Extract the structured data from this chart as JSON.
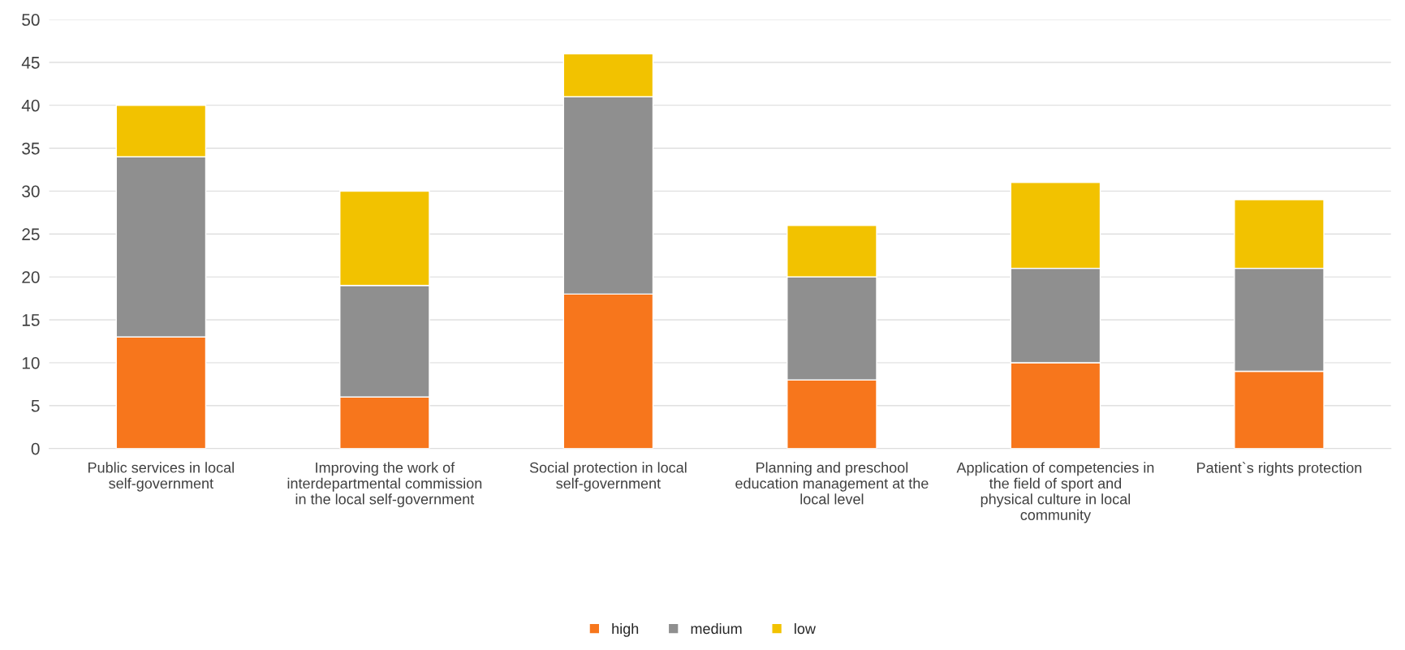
{
  "chart_data": {
    "type": "bar",
    "stacked": true,
    "categories": [
      "Public services in local self-government",
      "Improving the work of interdepartmental commission in the local self-government",
      "Social protection in local self-government",
      "Planning and preschool education management at the local level",
      "Application of competencies in the field of sport and physical culture in local community",
      "Patient`s rights protection"
    ],
    "series": [
      {
        "name": "high",
        "color": "#f7761c",
        "values": [
          13,
          6,
          18,
          8,
          10,
          9
        ]
      },
      {
        "name": "medium",
        "color": "#8f8f8f",
        "values": [
          21,
          13,
          23,
          12,
          11,
          12
        ]
      },
      {
        "name": "low",
        "color": "#f2c200",
        "values": [
          6,
          11,
          5,
          6,
          10,
          8
        ]
      }
    ],
    "ylim": [
      0,
      50
    ],
    "yticks": [
      0,
      5,
      10,
      15,
      20,
      25,
      30,
      35,
      40,
      45,
      50
    ],
    "grid": "y",
    "legend": "bottom"
  }
}
